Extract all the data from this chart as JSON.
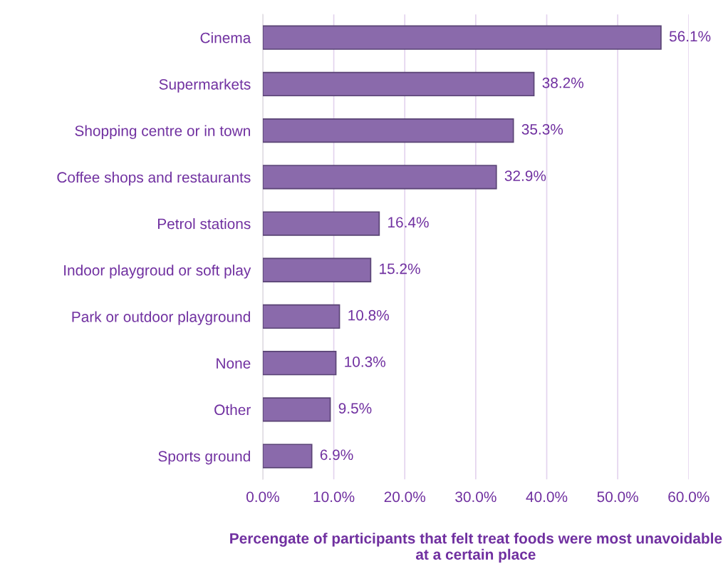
{
  "chart_data": {
    "type": "bar",
    "orientation": "horizontal",
    "categories": [
      "Cinema",
      "Supermarkets",
      "Shopping centre or in town",
      "Coffee shops and restaurants",
      "Petrol stations",
      "Indoor playgroud or soft play",
      "Park or outdoor playground",
      "None",
      "Other",
      "Sports ground"
    ],
    "values": [
      56.1,
      38.2,
      35.3,
      32.9,
      16.4,
      15.2,
      10.8,
      10.3,
      9.5,
      6.9
    ],
    "value_labels": [
      "56.1%",
      "38.2%",
      "35.3%",
      "32.9%",
      "16.4%",
      "15.2%",
      "10.8%",
      "10.3%",
      "9.5%",
      "6.9%"
    ],
    "color": "#8a6aab",
    "xlim": [
      0,
      60
    ],
    "xticks": [
      {
        "value": 0,
        "label": "0.0%"
      },
      {
        "value": 10,
        "label": "10.0%"
      },
      {
        "value": 20,
        "label": "20.0%"
      },
      {
        "value": 30,
        "label": "30.0%"
      },
      {
        "value": 40,
        "label": "40.0%"
      },
      {
        "value": 50,
        "label": "50.0%"
      },
      {
        "value": 60,
        "label": "60.0%"
      }
    ],
    "xlabel": "Percengate of participants that felt treat foods were most unavoidable\nat a certain place",
    "grid": "x",
    "legend": false
  }
}
